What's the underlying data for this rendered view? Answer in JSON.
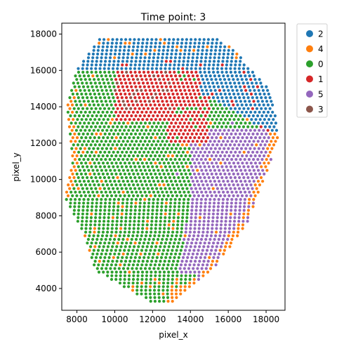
{
  "chart_data": {
    "type": "scatter",
    "title": "Time point: 3",
    "xlabel": "pixel_x",
    "ylabel": "pixel_y",
    "xlim": [
      7200,
      19000
    ],
    "ylim": [
      2800,
      18600
    ],
    "xticks": [
      8000,
      10000,
      12000,
      14000,
      16000,
      18000
    ],
    "yticks": [
      4000,
      6000,
      8000,
      10000,
      12000,
      14000,
      16000,
      18000
    ],
    "grid": false,
    "legend_position": "outside-top-right",
    "legend": [
      {
        "label": "2",
        "color": "#1f77b4"
      },
      {
        "label": "4",
        "color": "#ff7f0e"
      },
      {
        "label": "0",
        "color": "#2ca02c"
      },
      {
        "label": "1",
        "color": "#d62728"
      },
      {
        "label": "5",
        "color": "#9467bd"
      },
      {
        "label": "3",
        "color": "#8c564b"
      }
    ],
    "point_grid": {
      "y_start": 3300,
      "y_end": 17700,
      "row_spacing": 200,
      "col_spacing": 230
    }
  }
}
